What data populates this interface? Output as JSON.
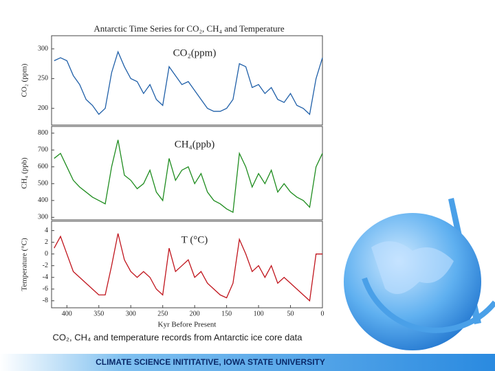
{
  "title": "Antarctic Time Series for CO₂, CH₄ and Temperature",
  "caption": "CO₂, CH₄ and temperature records from Antarctic ice core data",
  "footer": "CLIMATE SCIENCE INITITATIVE, IOWA STATE UNIVERSITY",
  "chart_data": [
    {
      "type": "line",
      "panel_label": "CO₂(ppm)",
      "y_label": "CO₂ (ppm)",
      "x": [
        420,
        410,
        400,
        390,
        380,
        370,
        360,
        350,
        340,
        330,
        320,
        310,
        300,
        290,
        280,
        270,
        260,
        250,
        240,
        230,
        220,
        210,
        200,
        190,
        180,
        170,
        160,
        150,
        140,
        130,
        120,
        110,
        100,
        90,
        80,
        70,
        60,
        50,
        40,
        30,
        20,
        10,
        0
      ],
      "series": [
        {
          "name": "CO₂",
          "color": "#1f5fa8",
          "values": [
            280,
            285,
            280,
            255,
            240,
            215,
            205,
            190,
            200,
            260,
            295,
            270,
            250,
            245,
            225,
            240,
            215,
            205,
            270,
            255,
            240,
            245,
            230,
            215,
            200,
            195,
            195,
            200,
            215,
            275,
            270,
            235,
            240,
            225,
            235,
            215,
            210,
            225,
            205,
            200,
            190,
            250,
            285
          ]
        }
      ],
      "xlim": [
        424,
        0
      ],
      "ylim": [
        172,
        322
      ],
      "yticks": [
        200,
        250,
        300
      ]
    },
    {
      "type": "line",
      "panel_label": "CH₄(ppb)",
      "y_label": "CH₄ (ppb)",
      "x": [
        420,
        410,
        400,
        390,
        380,
        370,
        360,
        350,
        340,
        330,
        320,
        310,
        300,
        290,
        280,
        270,
        260,
        250,
        240,
        230,
        220,
        210,
        200,
        190,
        180,
        170,
        160,
        150,
        140,
        130,
        120,
        110,
        100,
        90,
        80,
        70,
        60,
        50,
        40,
        30,
        20,
        10,
        0
      ],
      "series": [
        {
          "name": "CH₄",
          "color": "#1e8c1e",
          "values": [
            650,
            680,
            600,
            520,
            480,
            450,
            420,
            400,
            380,
            600,
            760,
            550,
            520,
            470,
            500,
            580,
            450,
            400,
            650,
            520,
            580,
            600,
            500,
            560,
            450,
            400,
            380,
            350,
            330,
            680,
            600,
            480,
            560,
            500,
            580,
            450,
            500,
            450,
            420,
            400,
            360,
            600,
            680
          ]
        }
      ],
      "xlim": [
        424,
        0
      ],
      "ylim": [
        285,
        840
      ],
      "yticks": [
        300,
        400,
        500,
        600,
        700,
        800
      ]
    },
    {
      "type": "line",
      "panel_label": "T (°C)",
      "y_label": "Temperature (°C)",
      "x_label": "Kyr Before Present",
      "x": [
        420,
        410,
        400,
        390,
        380,
        370,
        360,
        350,
        340,
        330,
        320,
        310,
        300,
        290,
        280,
        270,
        260,
        250,
        240,
        230,
        220,
        210,
        200,
        190,
        180,
        170,
        160,
        150,
        140,
        130,
        120,
        110,
        100,
        90,
        80,
        70,
        60,
        50,
        40,
        30,
        20,
        10,
        0
      ],
      "series": [
        {
          "name": "T",
          "color": "#c0141c",
          "values": [
            1,
            3,
            0,
            -3,
            -4,
            -5,
            -6,
            -7,
            -7,
            -2,
            3.5,
            -1,
            -3,
            -4,
            -3,
            -4,
            -6,
            -7,
            1,
            -3,
            -2,
            -1,
            -4,
            -3,
            -5,
            -6,
            -7,
            -7.5,
            -5,
            2.5,
            0,
            -3,
            -2,
            -4,
            -2,
            -5,
            -4,
            -5,
            -6,
            -7,
            -8,
            0,
            0
          ]
        }
      ],
      "xlim": [
        424,
        0
      ],
      "ylim": [
        -9.2,
        5.6
      ],
      "yticks": [
        4,
        2,
        0,
        -2,
        -4,
        -6,
        -8
      ],
      "xticks": [
        400,
        350,
        300,
        250,
        200,
        150,
        100,
        50,
        0
      ]
    }
  ]
}
